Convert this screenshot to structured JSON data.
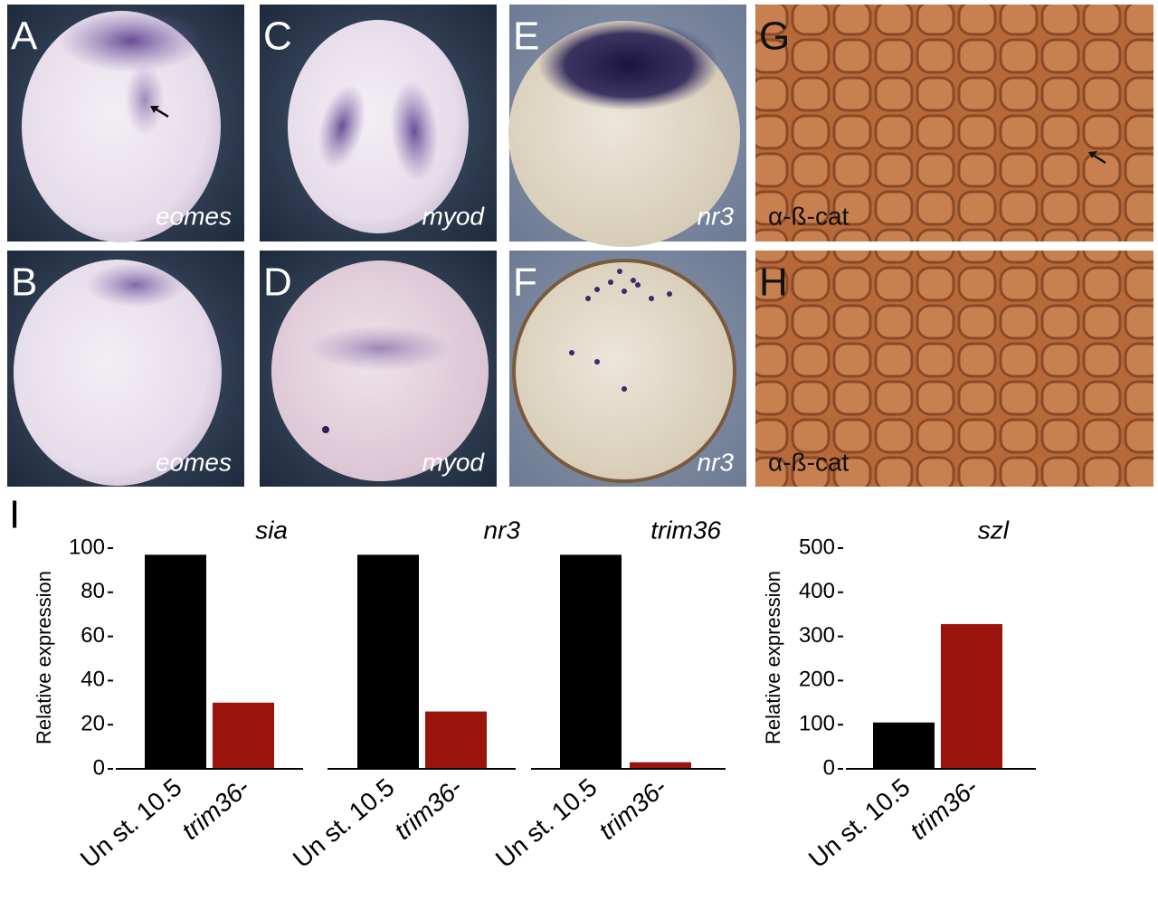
{
  "panels": [
    {
      "letter": "A",
      "caption": "eomes"
    },
    {
      "letter": "B",
      "caption": "eomes"
    },
    {
      "letter": "C",
      "caption": "myod"
    },
    {
      "letter": "D",
      "caption": "myod"
    },
    {
      "letter": "E",
      "caption": "nr3"
    },
    {
      "letter": "F",
      "caption": "nr3"
    },
    {
      "letter": "G",
      "caption": "α-ß-cat"
    },
    {
      "letter": "H",
      "caption": "α-ß-cat"
    }
  ],
  "chart_label": "I",
  "chart_data": [
    {
      "type": "bar",
      "title": "sia",
      "y_label": "Relative expression",
      "categories": [
        "Un st. 10.5",
        "trim36-"
      ],
      "values": [
        97,
        30
      ],
      "colors": [
        "#000000",
        "#9b140c"
      ],
      "ylim": [
        0,
        100
      ],
      "yticks": [
        0,
        20,
        40,
        60,
        80,
        100
      ]
    },
    {
      "type": "bar",
      "title": "nr3",
      "categories": [
        "Un st. 10.5",
        "trim36-"
      ],
      "values": [
        97,
        26
      ],
      "colors": [
        "#000000",
        "#9b140c"
      ],
      "ylim": [
        0,
        100
      ]
    },
    {
      "type": "bar",
      "title": "trim36",
      "categories": [
        "Un st. 10.5",
        "trim36-"
      ],
      "values": [
        97,
        3
      ],
      "colors": [
        "#000000",
        "#9b140c"
      ],
      "ylim": [
        0,
        100
      ]
    },
    {
      "type": "bar",
      "title": "szl",
      "y_label": "Relative expression",
      "categories": [
        "Un st. 10.5",
        "trim36-"
      ],
      "values": [
        105,
        328
      ],
      "colors": [
        "#000000",
        "#9b140c"
      ],
      "ylim": [
        0,
        500
      ],
      "yticks": [
        0,
        100,
        200,
        300,
        400,
        500
      ]
    }
  ]
}
